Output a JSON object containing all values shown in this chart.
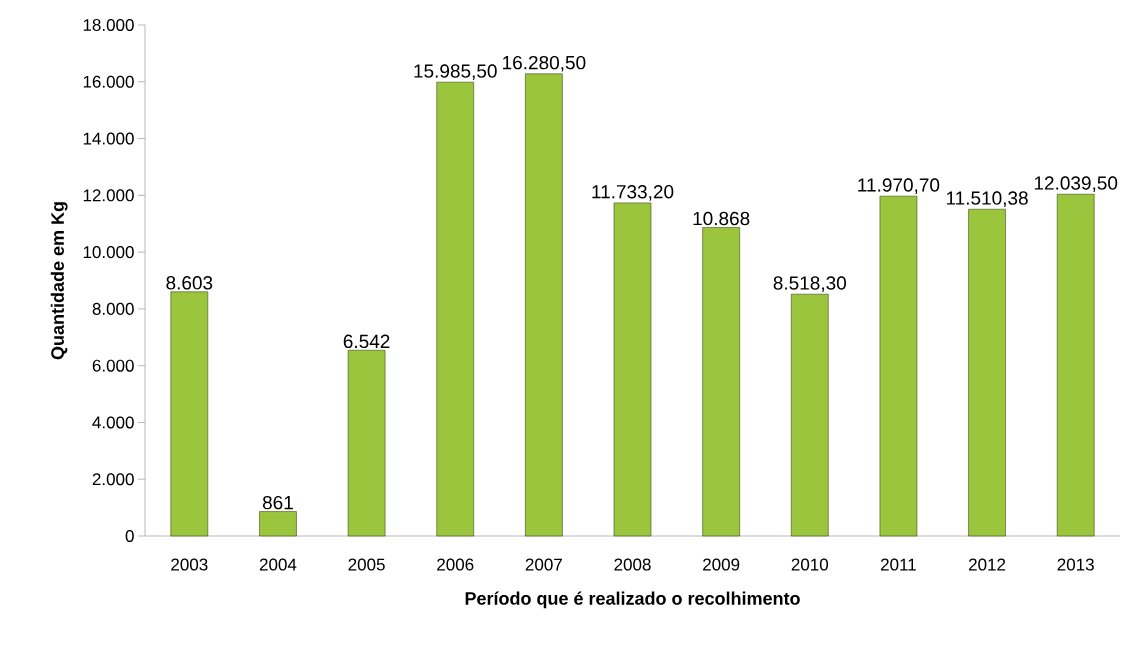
{
  "chart_data": {
    "type": "bar",
    "xlabel": "Período que é realizado o recolhimento",
    "ylabel": "Quantidade em Kg",
    "categories": [
      "2003",
      "2004",
      "2005",
      "2006",
      "2007",
      "2008",
      "2009",
      "2010",
      "2011",
      "2012",
      "2013"
    ],
    "values": [
      8603,
      861,
      6542,
      15985.5,
      16280.5,
      11733.2,
      10868,
      8518.3,
      11970.7,
      11510.38,
      12039.5
    ],
    "value_labels": [
      "8.603",
      "861",
      "6.542",
      "15.985,50",
      "16.280,50",
      "11.733,20",
      "10.868",
      "8.518,30",
      "11.970,70",
      "11.510,38",
      "12.039,50"
    ],
    "color": "#9bc53d",
    "ylim": [
      0,
      18000
    ],
    "yticks": [
      {
        "value": 0,
        "label": "0"
      },
      {
        "value": 2000,
        "label": "2.000"
      },
      {
        "value": 4000,
        "label": "4.000"
      },
      {
        "value": 6000,
        "label": "6.000"
      },
      {
        "value": 8000,
        "label": "8.000"
      },
      {
        "value": 10000,
        "label": "10.000"
      },
      {
        "value": 12000,
        "label": "12.000"
      },
      {
        "value": 14000,
        "label": "14.000"
      },
      {
        "value": 16000,
        "label": "16.000"
      },
      {
        "value": 18000,
        "label": "18.000"
      }
    ],
    "grid": false
  }
}
